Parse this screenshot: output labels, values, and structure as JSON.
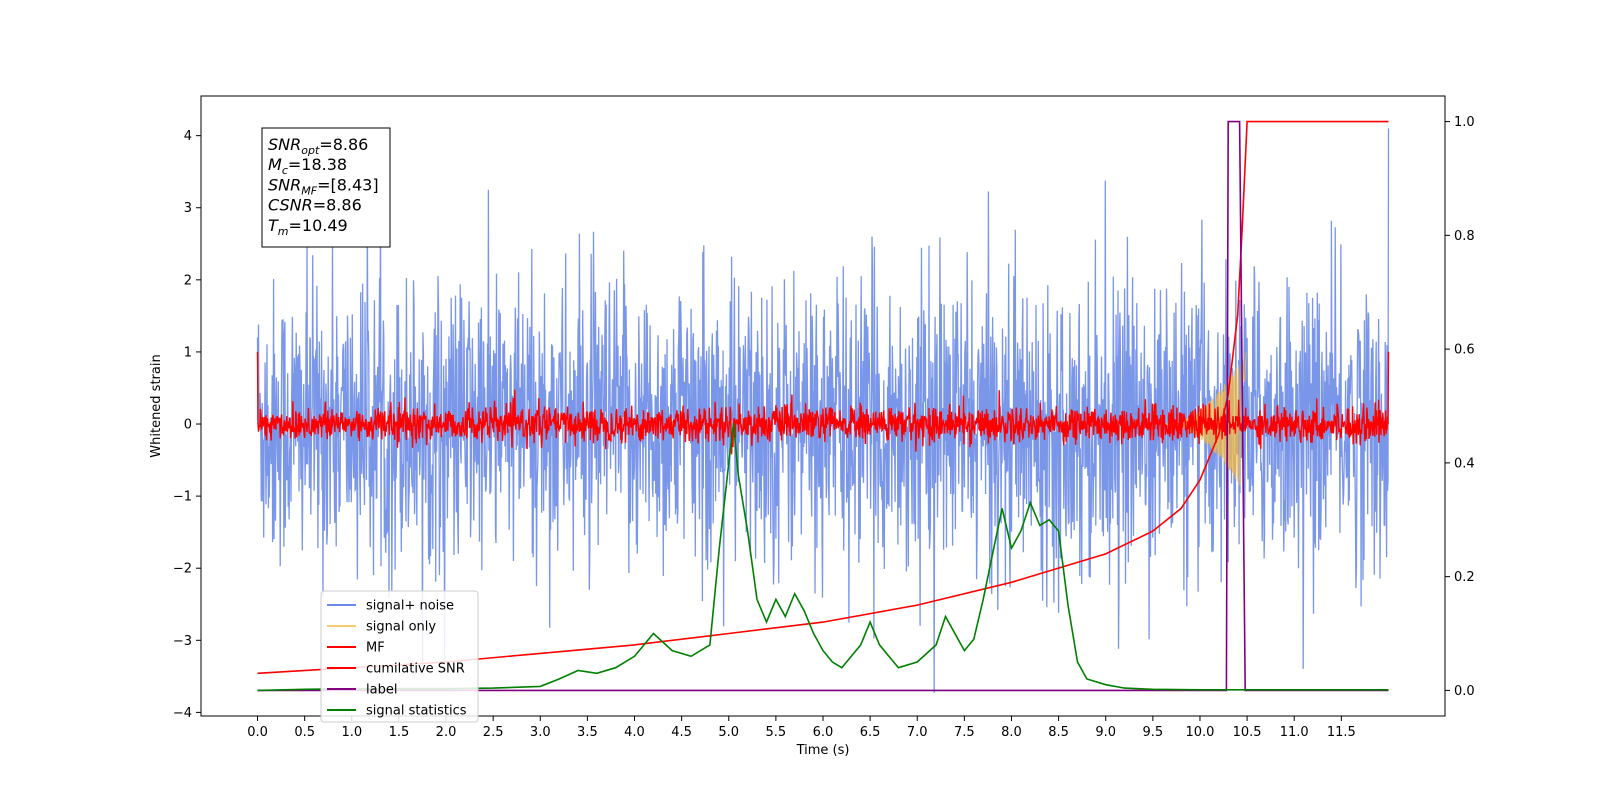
{
  "chart_data": {
    "type": "line",
    "xlabel": "Time (s)",
    "ylabel": "Whitened strain",
    "xlim": [
      -0.6,
      12.6
    ],
    "ylim": [
      -4.05,
      4.55
    ],
    "ylim_right": [
      -0.045,
      1.045
    ],
    "grid": false,
    "legend_position": "lower-left",
    "xticks": [
      "0.0",
      "0.5",
      "1.0",
      "1.5",
      "2.0",
      "2.5",
      "3.0",
      "3.5",
      "4.0",
      "4.5",
      "5.0",
      "5.5",
      "6.0",
      "6.5",
      "7.0",
      "7.5",
      "8.0",
      "8.5",
      "9.0",
      "9.5",
      "10.0",
      "10.5",
      "11.0",
      "11.5"
    ],
    "yticks_left": [
      "4",
      "3",
      "2",
      "1",
      "0",
      "−1",
      "−2",
      "−3",
      "−4"
    ],
    "yticks_right": [
      "1.0",
      "0.8",
      "0.6",
      "0.4",
      "0.2",
      "0.0"
    ],
    "annotation": {
      "lines": [
        {
          "sym": "SNR",
          "sub": "opt",
          "value": "=8.86"
        },
        {
          "sym": "M",
          "sub": "c",
          "value": "=18.38"
        },
        {
          "sym": "SNR",
          "sub": "MF",
          "value": "=[8.43]"
        },
        {
          "sym": "CSNR",
          "sub": "",
          "value": "=8.86"
        },
        {
          "sym": "T",
          "sub": "m",
          "value": "=10.49"
        }
      ]
    },
    "series": [
      {
        "name": "signal+ noise",
        "axis": "left",
        "color": "#6c8be6",
        "kind": "noise",
        "amplitude": 1.6,
        "x_range": [
          0,
          12
        ]
      },
      {
        "name": "signal only",
        "axis": "left",
        "color": "#f5b942",
        "kind": "chirp",
        "peak_time": 10.49,
        "peak_amplitude": 1.0
      },
      {
        "name": "MF",
        "axis": "left",
        "color": "#ff0000",
        "kind": "noise",
        "amplitude": 0.2,
        "x_range": [
          0,
          12
        ]
      },
      {
        "name": "cumilative SNR",
        "axis": "right",
        "color": "#ff0000",
        "x": [
          0.0,
          1.0,
          2.0,
          3.0,
          4.0,
          5.0,
          6.0,
          7.0,
          8.0,
          9.0,
          9.5,
          9.8,
          10.0,
          10.2,
          10.3,
          10.4,
          10.45,
          10.5,
          12.0
        ],
        "y": [
          0.03,
          0.04,
          0.05,
          0.065,
          0.08,
          0.1,
          0.12,
          0.15,
          0.19,
          0.24,
          0.28,
          0.32,
          0.37,
          0.45,
          0.52,
          0.66,
          0.82,
          1.0,
          1.0
        ]
      },
      {
        "name": "label",
        "axis": "right",
        "color": "#800080",
        "x": [
          0.0,
          10.28,
          10.3,
          10.42,
          10.48,
          12.0
        ],
        "y": [
          0.0,
          0.0,
          1.0,
          1.0,
          0.0,
          0.0
        ]
      },
      {
        "name": "signal statistics",
        "axis": "right",
        "color": "#008000",
        "x": [
          0.0,
          0.5,
          1.0,
          1.5,
          2.0,
          2.5,
          3.0,
          3.2,
          3.4,
          3.6,
          3.8,
          4.0,
          4.2,
          4.4,
          4.6,
          4.8,
          4.9,
          5.0,
          5.05,
          5.1,
          5.2,
          5.3,
          5.4,
          5.5,
          5.6,
          5.7,
          5.8,
          5.9,
          6.0,
          6.1,
          6.2,
          6.3,
          6.4,
          6.5,
          6.6,
          6.8,
          7.0,
          7.2,
          7.3,
          7.4,
          7.5,
          7.6,
          7.7,
          7.8,
          7.9,
          8.0,
          8.1,
          8.2,
          8.3,
          8.4,
          8.5,
          8.6,
          8.7,
          8.8,
          9.0,
          9.2,
          9.5,
          10.0,
          12.0
        ],
        "y": [
          0.0,
          0.002,
          0.003,
          0.003,
          0.003,
          0.004,
          0.007,
          0.02,
          0.035,
          0.03,
          0.04,
          0.06,
          0.1,
          0.07,
          0.06,
          0.08,
          0.25,
          0.4,
          0.47,
          0.38,
          0.28,
          0.16,
          0.12,
          0.16,
          0.13,
          0.17,
          0.14,
          0.1,
          0.07,
          0.05,
          0.04,
          0.06,
          0.08,
          0.12,
          0.08,
          0.04,
          0.05,
          0.08,
          0.13,
          0.1,
          0.07,
          0.09,
          0.16,
          0.24,
          0.32,
          0.25,
          0.28,
          0.33,
          0.29,
          0.3,
          0.28,
          0.15,
          0.05,
          0.02,
          0.01,
          0.004,
          0.002,
          0.001,
          0.001
        ]
      }
    ]
  }
}
